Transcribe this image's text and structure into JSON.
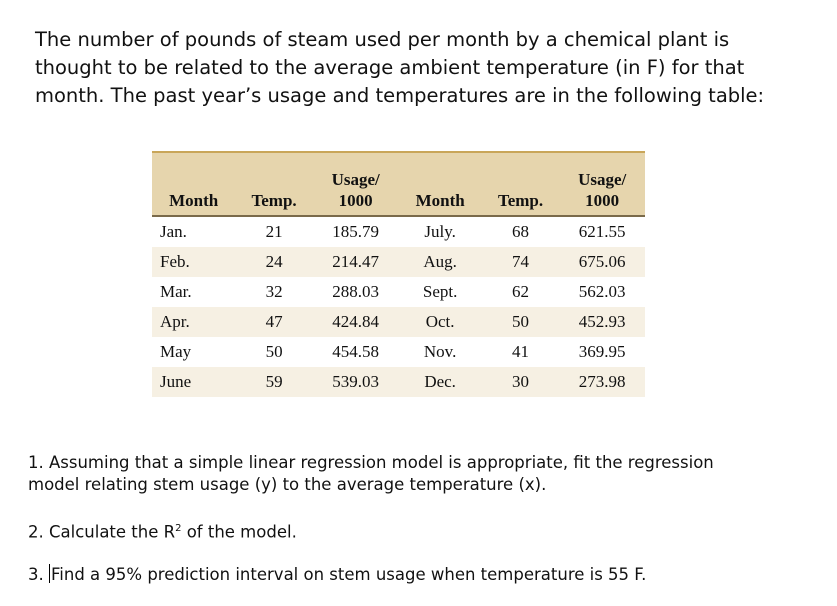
{
  "intro_lines": [
    "The number of pounds of steam used per month by a chemical plant is",
    "thought to be related to the average ambient temperature (in F) for that",
    "month. The past year’s usage and temperatures are in the following table:"
  ],
  "table": {
    "headers": [
      {
        "l1": "",
        "l2": "Month"
      },
      {
        "l1": "",
        "l2": "Temp."
      },
      {
        "l1": "Usage/",
        "l2": "1000"
      },
      {
        "l1": "",
        "l2": "Month"
      },
      {
        "l1": "",
        "l2": "Temp."
      },
      {
        "l1": "Usage/",
        "l2": "1000"
      }
    ],
    "rows": [
      [
        "Jan.",
        "21",
        "185.79",
        "July.",
        "68",
        "621.55"
      ],
      [
        "Feb.",
        "24",
        "214.47",
        "Aug.",
        "74",
        "675.06"
      ],
      [
        "Mar.",
        "32",
        "288.03",
        "Sept.",
        "62",
        "562.03"
      ],
      [
        "Apr.",
        "47",
        "424.84",
        "Oct.",
        "50",
        "452.93"
      ],
      [
        "May",
        "50",
        "454.58",
        "Nov.",
        "41",
        "369.95"
      ],
      [
        "June",
        "59",
        "539.03",
        "Dec.",
        "30",
        "273.98"
      ]
    ]
  },
  "questions": {
    "q1_line1": "1. Assuming that a simple linear regression model is appropriate, fit the regression",
    "q1_line2": "model relating stem usage (y) to the average temperature (x).",
    "q2_pre": "2. Calculate the R",
    "q2_sup": "2",
    "q2_post": " of the model.",
    "q3_pre": "3. ",
    "q3_post": "Find a 95% prediction interval on stem usage when temperature is 55 F."
  },
  "colors": {
    "header_bg": "#e6d5ad",
    "stripe": "#f6f0e3",
    "top_rule": "#c9a659"
  }
}
